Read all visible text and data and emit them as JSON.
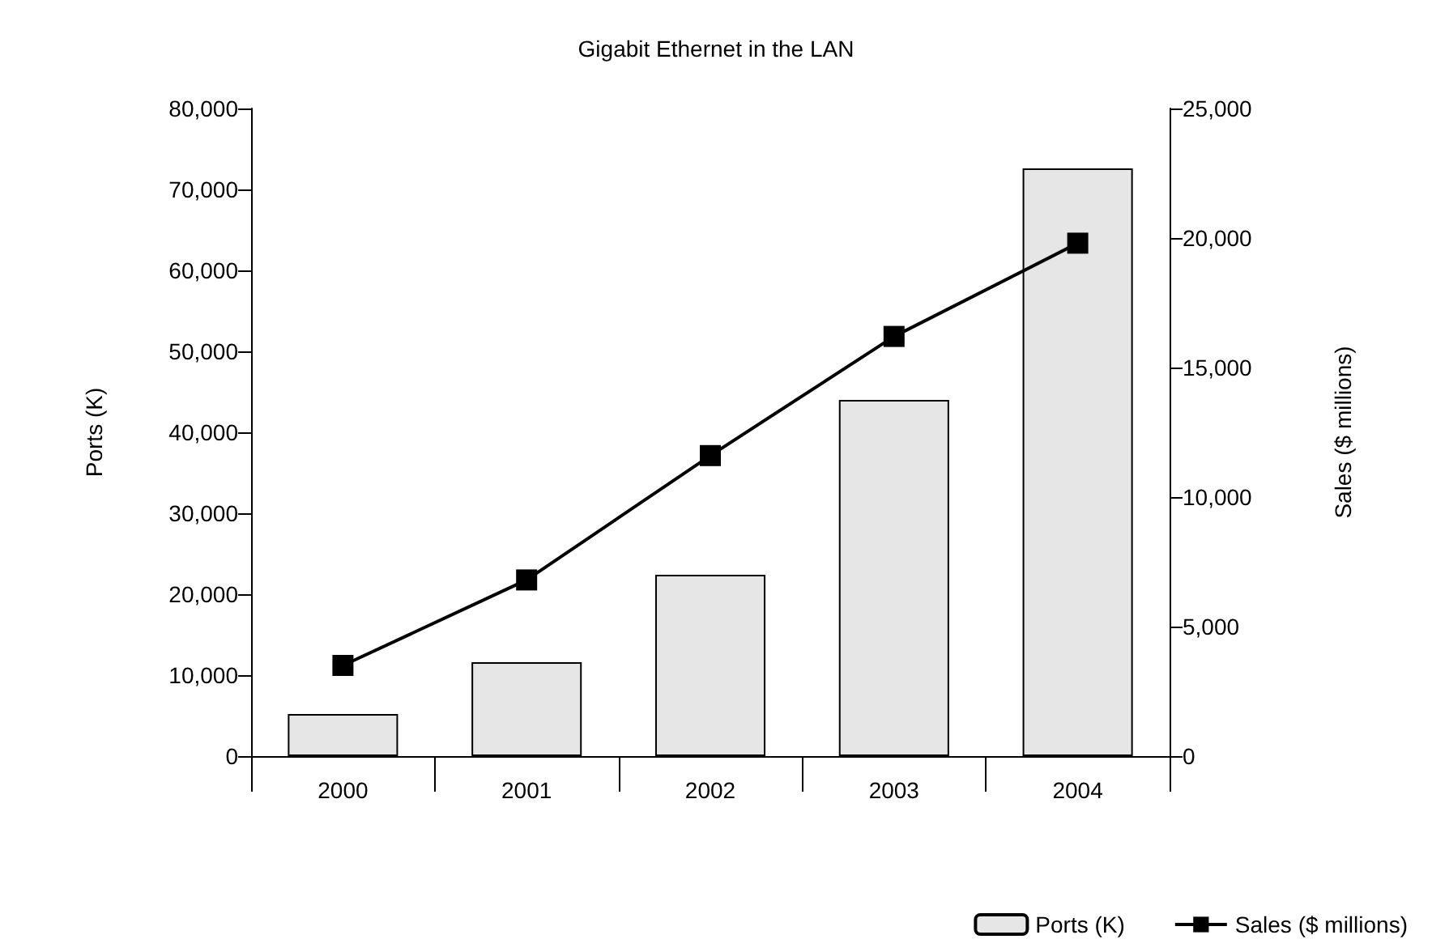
{
  "chart_data": {
    "type": "bar",
    "title": "Gigabit Ethernet in the LAN",
    "ylabel": "Ports (K)",
    "y2label": "Sales ($ millions)",
    "categories": [
      "2000",
      "2001",
      "2002",
      "2003",
      "2004"
    ],
    "series": [
      {
        "name": "Ports (K)",
        "color": "#e6e6e6",
        "values": [
          5200,
          11600,
          22400,
          44000,
          72600
        ]
      },
      {
        "name": "Sales ($ millions)",
        "type": "line",
        "axis": "y2",
        "color": "#000000",
        "marker": "square",
        "values": [
          3500,
          6800,
          11600,
          16200,
          19800
        ]
      }
    ],
    "ylim": [
      0,
      80000
    ],
    "yticks": [
      {
        "value": 0,
        "label": "0"
      },
      {
        "value": 10000,
        "label": "10,000"
      },
      {
        "value": 20000,
        "label": "20,000"
      },
      {
        "value": 30000,
        "label": "30,000"
      },
      {
        "value": 40000,
        "label": "40,000"
      },
      {
        "value": 50000,
        "label": "50,000"
      },
      {
        "value": 60000,
        "label": "60,000"
      },
      {
        "value": 70000,
        "label": "70,000"
      },
      {
        "value": 80000,
        "label": "80,000"
      }
    ],
    "y2lim": [
      0,
      25000
    ],
    "y2ticks": [
      {
        "value": 0,
        "label": "0"
      },
      {
        "value": 5000,
        "label": "5,000"
      },
      {
        "value": 10000,
        "label": "10,000"
      },
      {
        "value": 15000,
        "label": "15,000"
      },
      {
        "value": 20000,
        "label": "20,000"
      },
      {
        "value": 25000,
        "label": "25,000"
      }
    ],
    "grid": false,
    "legend": "bottom right"
  }
}
